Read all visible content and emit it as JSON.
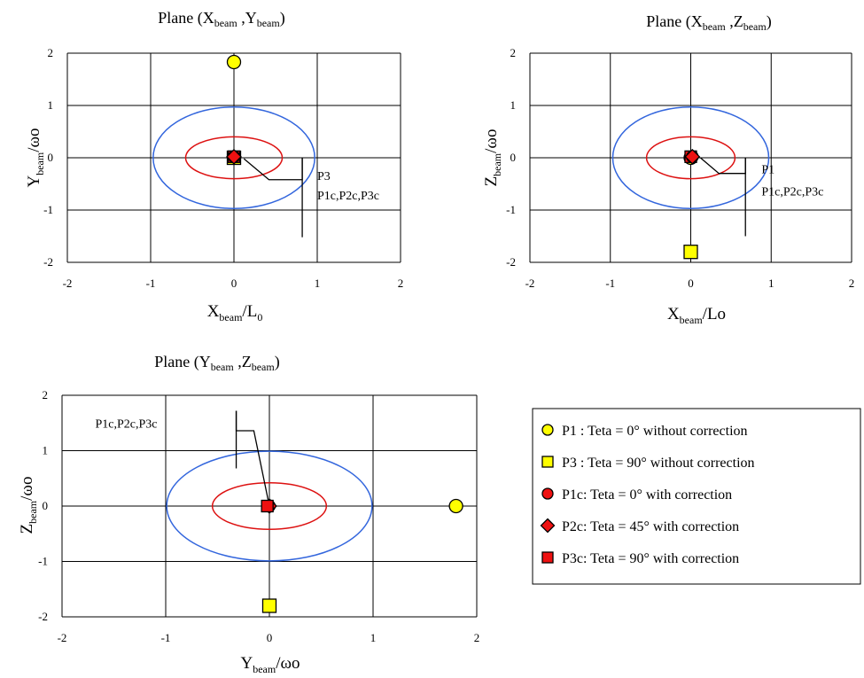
{
  "chart_data": [
    {
      "type": "scatter",
      "title": {
        "prefix": "Plane (",
        "v1": "X",
        "s1": "beam",
        "mid": " ,",
        "v2": "Y",
        "s2": "beam",
        "suffix": ")"
      },
      "xlabel": {
        "main": "X",
        "sub": "beam",
        "tail": "/L",
        "sub2": "0"
      },
      "ylabel": {
        "main": "Y",
        "sub": "beam",
        "tail": "/ωo",
        "sub2": ""
      },
      "xlim": [
        -2,
        2
      ],
      "ylim": [
        -2,
        2
      ],
      "xticks": [
        "-2",
        "-1",
        "0",
        "1",
        "2"
      ],
      "yticks": [
        "-2",
        "-1",
        "0",
        "1",
        "2"
      ],
      "grid": true,
      "ellipses": [
        {
          "color": "#3366dd",
          "rx": 0.97,
          "ry": 0.97
        },
        {
          "color": "#dd1111",
          "rx": 0.58,
          "ry": 0.4
        }
      ],
      "points": [
        {
          "name": "P1",
          "marker": "circle",
          "color": "#ffff00",
          "x": 0.0,
          "y": 1.83
        },
        {
          "name": "P3",
          "marker": "square",
          "color": "#ffff00",
          "x": 0.0,
          "y": 0.0
        },
        {
          "name": "P3c",
          "marker": "square",
          "color": "#ee1111",
          "x": 0.0,
          "y": 0.02
        },
        {
          "name": "P1c",
          "marker": "circle",
          "color": "#ee1111",
          "x": 0.0,
          "y": 0.02
        },
        {
          "name": "P2c",
          "marker": "diamond",
          "color": "#ee1111",
          "x": 0.0,
          "y": 0.02
        }
      ],
      "annotations": [
        {
          "text": "P3",
          "x": 1.0,
          "y": -0.42
        },
        {
          "text": "P1c,P2c,P3c",
          "x": 1.0,
          "y": -0.8
        }
      ],
      "leader": [
        [
          0.12,
          -0.02
        ],
        [
          0.42,
          -0.42
        ],
        [
          0.82,
          -0.42
        ],
        [
          0.82,
          0.0
        ],
        [
          0.82,
          -1.52
        ]
      ]
    },
    {
      "type": "scatter",
      "title": {
        "prefix": "Plane (",
        "v1": "X",
        "s1": "beam",
        "mid": " ,",
        "v2": "Z",
        "s2": "beam",
        "suffix": ")"
      },
      "xlabel": {
        "main": "X",
        "sub": "beam",
        "tail": "/Lo",
        "sub2": ""
      },
      "ylabel": {
        "main": "Z",
        "sub": "beam",
        "tail": "/ωo",
        "sub2": ""
      },
      "xlim": [
        -2,
        2
      ],
      "ylim": [
        -2,
        2
      ],
      "xticks": [
        "-2",
        "-1",
        "0",
        "1",
        "2"
      ],
      "yticks": [
        "-2",
        "-1",
        "0",
        "1",
        "2"
      ],
      "grid": true,
      "ellipses": [
        {
          "color": "#3366dd",
          "rx": 0.97,
          "ry": 0.97
        },
        {
          "color": "#dd1111",
          "rx": 0.55,
          "ry": 0.4
        }
      ],
      "points": [
        {
          "name": "P3",
          "marker": "square",
          "color": "#ffff00",
          "x": 0.0,
          "y": -1.8
        },
        {
          "name": "P1",
          "marker": "circle",
          "color": "#ffff00",
          "x": 0.0,
          "y": 0.0
        },
        {
          "name": "P3c",
          "marker": "square",
          "color": "#ee1111",
          "x": 0.0,
          "y": 0.02
        },
        {
          "name": "P1c",
          "marker": "circle",
          "color": "#ee1111",
          "x": 0.02,
          "y": 0.02
        },
        {
          "name": "P2c",
          "marker": "diamond",
          "color": "#ee1111",
          "x": 0.02,
          "y": 0.02
        }
      ],
      "annotations": [
        {
          "text": "P1",
          "x": 0.88,
          "y": -0.3
        },
        {
          "text": "P1c,P2c,P3c",
          "x": 0.88,
          "y": -0.72
        }
      ],
      "leader": [
        [
          0.12,
          0.0
        ],
        [
          0.35,
          -0.3
        ],
        [
          0.68,
          -0.3
        ],
        [
          0.68,
          0.0
        ],
        [
          0.68,
          -1.5
        ]
      ]
    },
    {
      "type": "scatter",
      "title": {
        "prefix": "Plane (",
        "v1": "Y",
        "s1": "beam",
        "mid": " ,",
        "v2": "Z",
        "s2": "beam",
        "suffix": ")"
      },
      "xlabel": {
        "main": "Y",
        "sub": "beam",
        "tail": "/ωo",
        "sub2": ""
      },
      "ylabel": {
        "main": "Z",
        "sub": "beam",
        "tail": "/ωo",
        "sub2": ""
      },
      "xlim": [
        -2,
        2
      ],
      "ylim": [
        -2,
        2
      ],
      "xticks": [
        "-2",
        "-1",
        "0",
        "1",
        "2"
      ],
      "yticks": [
        "-2",
        "-1",
        "0",
        "1",
        "2"
      ],
      "grid": true,
      "ellipses": [
        {
          "color": "#3366dd",
          "rx": 0.99,
          "ry": 0.99
        },
        {
          "color": "#dd1111",
          "rx": 0.55,
          "ry": 0.42
        }
      ],
      "points": [
        {
          "name": "P1",
          "marker": "circle",
          "color": "#ffff00",
          "x": 1.8,
          "y": 0.0
        },
        {
          "name": "P3",
          "marker": "square",
          "color": "#ffff00",
          "x": 0.0,
          "y": -1.8
        },
        {
          "name": "P1c",
          "marker": "circle",
          "color": "#ee1111",
          "x": 0.0,
          "y": 0.0
        },
        {
          "name": "P2c",
          "marker": "diamond",
          "color": "#ee1111",
          "x": 0.0,
          "y": 0.0
        },
        {
          "name": "P3c",
          "marker": "square",
          "color": "#ee1111",
          "x": -0.02,
          "y": 0.0
        }
      ],
      "annotations": [
        {
          "text": "P1c,P2c,P3c",
          "x": -1.68,
          "y": 1.42
        }
      ],
      "leader": [
        [
          0.0,
          0.0
        ],
        [
          -0.15,
          1.36
        ],
        [
          -0.32,
          1.36
        ],
        [
          -0.32,
          1.72
        ],
        [
          -0.32,
          0.68
        ]
      ]
    }
  ],
  "legend": {
    "entries": [
      {
        "marker": "circle",
        "color": "#ffff00",
        "label": "P1 : Teta = 0° without correction"
      },
      {
        "marker": "square",
        "color": "#ffff00",
        "label": "P3 : Teta = 90° without correction"
      },
      {
        "marker": "circle",
        "color": "#ee1111",
        "label": "P1c: Teta = 0° with correction"
      },
      {
        "marker": "diamond",
        "color": "#ee1111",
        "label": "P2c: Teta = 45° with correction"
      },
      {
        "marker": "square",
        "color": "#ee1111",
        "label": "P3c: Teta = 90° with correction"
      }
    ]
  }
}
